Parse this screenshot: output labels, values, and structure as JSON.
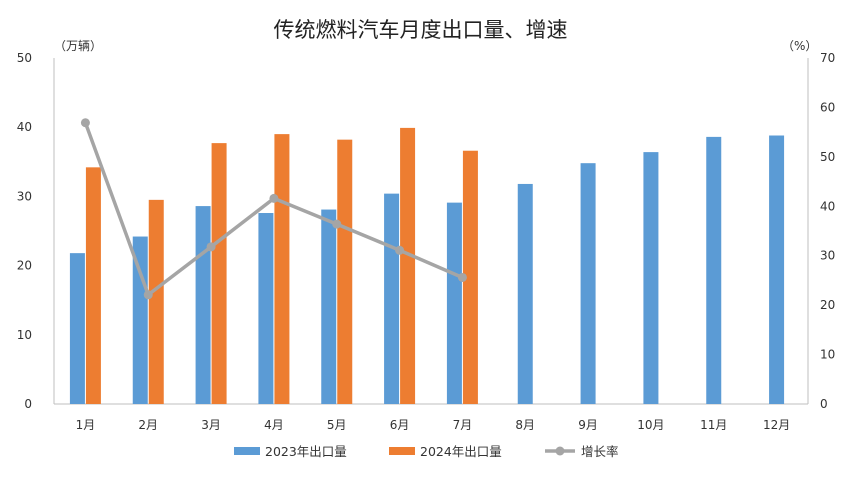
{
  "chart_data": {
    "type": "bar",
    "title": "传统燃料汽车月度出口量、增速",
    "left_unit": "（万辆）",
    "right_unit": "（%）",
    "categories": [
      "1月",
      "2月",
      "3月",
      "4月",
      "5月",
      "6月",
      "7月",
      "8月",
      "9月",
      "10月",
      "11月",
      "12月"
    ],
    "ylim": [
      0,
      50
    ],
    "yticks": [
      "0",
      "10",
      "20",
      "30",
      "40",
      "50"
    ],
    "y2lim": [
      0,
      70
    ],
    "y2ticks": [
      "0",
      "10",
      "20",
      "30",
      "40",
      "50",
      "60",
      "70"
    ],
    "grid": false,
    "legend_position": "bottom",
    "series": [
      {
        "name": "2023年出口量",
        "kind": "bar",
        "axis": "left",
        "color": "#5B9BD5",
        "values": [
          21.8,
          24.2,
          28.6,
          27.6,
          28.1,
          30.4,
          29.1,
          31.8,
          34.8,
          36.4,
          38.6,
          38.8
        ]
      },
      {
        "name": "2024年出口量",
        "kind": "bar",
        "axis": "left",
        "color": "#ED7D31",
        "values": [
          34.2,
          29.5,
          37.7,
          39.0,
          38.2,
          39.9,
          36.6,
          null,
          null,
          null,
          null,
          null
        ]
      },
      {
        "name": "增长率",
        "kind": "line",
        "axis": "right",
        "color": "#A5A5A5",
        "values": [
          56.9,
          22.1,
          31.8,
          41.6,
          36.4,
          31.1,
          25.6,
          null,
          null,
          null,
          null,
          null
        ]
      }
    ]
  }
}
